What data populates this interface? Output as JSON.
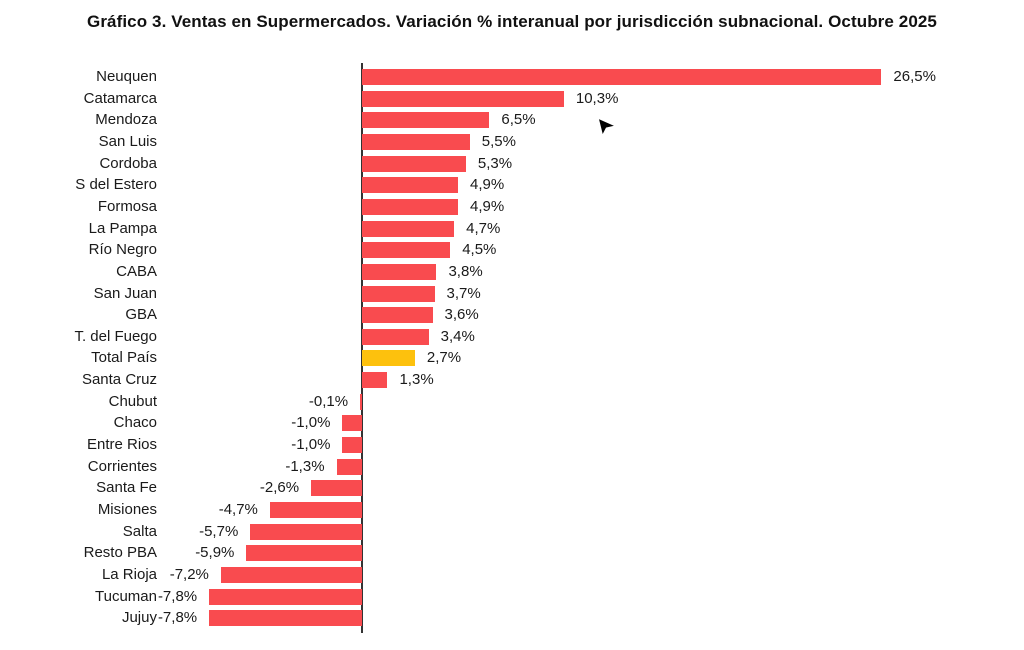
{
  "chart_data": {
    "type": "bar",
    "orientation": "horizontal",
    "title": "Gráfico 3. Ventas en Supermercados. Variación % interanual por jurisdicción subnacional. Octubre 2025",
    "xlabel": "",
    "ylabel": "",
    "unit": "%",
    "decimal_separator": ",",
    "grid": false,
    "legend": "none",
    "xlim": [
      -10,
      30
    ],
    "categories": [
      "Neuquen",
      "Catamarca",
      "Mendoza",
      "San Luis",
      "Cordoba",
      "S del Estero",
      "Formosa",
      "La Pampa",
      "Río Negro",
      "CABA",
      "San Juan",
      "GBA",
      "T. del Fuego",
      "Total País",
      "Santa Cruz",
      "Chubut",
      "Chaco",
      "Entre Rios",
      "Corrientes",
      "Santa Fe",
      "Misiones",
      "Salta",
      "Resto PBA",
      "La Rioja",
      "Tucuman",
      "Jujuy"
    ],
    "values": [
      26.5,
      10.3,
      6.5,
      5.5,
      5.3,
      4.9,
      4.9,
      4.7,
      4.5,
      3.8,
      3.7,
      3.6,
      3.4,
      2.7,
      1.3,
      -0.1,
      -1.0,
      -1.0,
      -1.3,
      -2.6,
      -4.7,
      -5.7,
      -5.9,
      -7.2,
      -7.8,
      -7.8
    ],
    "value_labels": [
      "26,5%",
      "10,3%",
      "6,5%",
      "5,5%",
      "5,3%",
      "4,9%",
      "4,9%",
      "4,7%",
      "4,5%",
      "3,8%",
      "3,7%",
      "3,6%",
      "3,4%",
      "2,7%",
      "1,3%",
      "-0,1%",
      "-1,0%",
      "-1,0%",
      "-1,3%",
      "-2,6%",
      "-4,7%",
      "-5,7%",
      "-5,9%",
      "-7,2%",
      "-7,8%",
      "-7,8%"
    ],
    "highlight_category": "Total País",
    "colors": {
      "bar": "#F94B4F",
      "highlight_bar": "#FDC10D",
      "axis": "#333333",
      "text": "#1A1A1A",
      "background": "#FFFFFF"
    }
  },
  "cursor": {
    "name": "mouse-pointer",
    "color": "#000000"
  }
}
